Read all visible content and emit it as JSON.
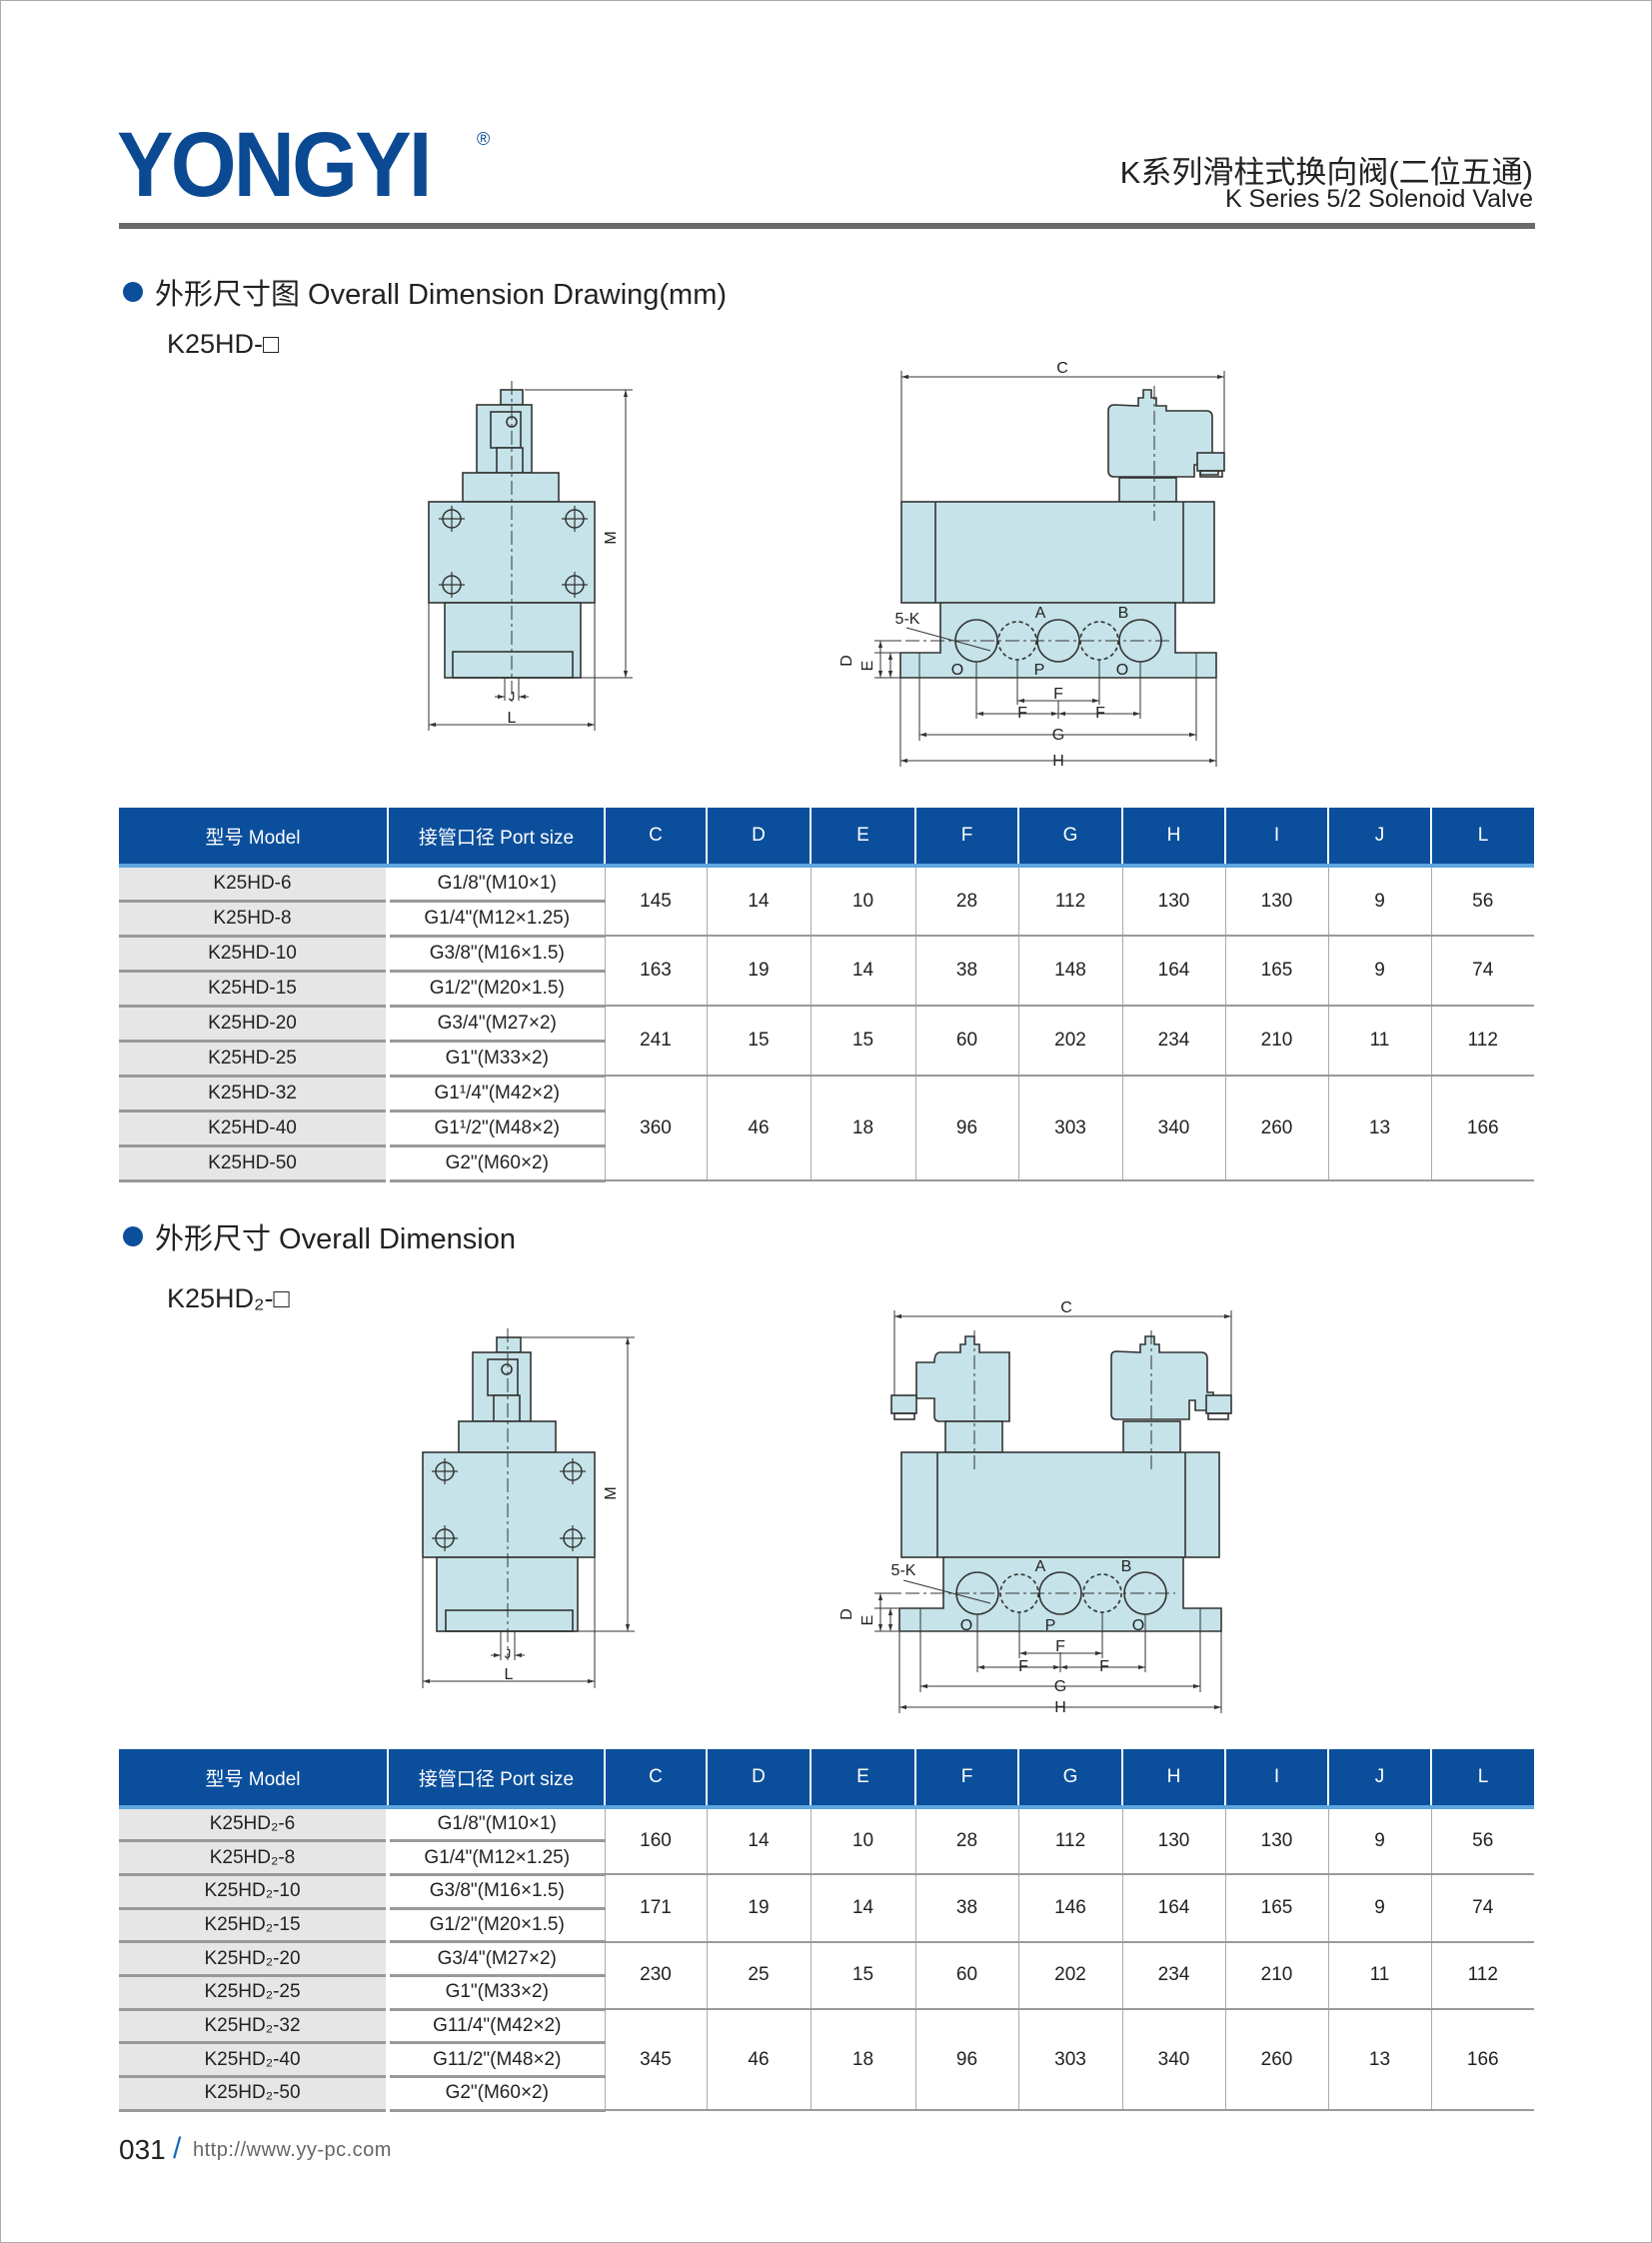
{
  "header": {
    "logo": "YONGYI",
    "registered_mark": "®",
    "title_cn": "K系列滑柱式换向阀(二位五通)",
    "title_en": "K Series 5/2 Solenoid Valve"
  },
  "section1": {
    "heading": "外形尺寸图 Overall Dimension Drawing(mm)",
    "model": "K25HD-□"
  },
  "section2": {
    "heading": "外形尺寸 Overall Dimension",
    "model": "K25HD₂-□"
  },
  "drawing_labels": {
    "C": "C",
    "D": "D",
    "E": "E",
    "F": "F",
    "G": "G",
    "H": "H",
    "M": "M",
    "L": "L",
    "J": "J",
    "K": "5-K",
    "A": "A",
    "B": "B",
    "O": "O",
    "P": "P"
  },
  "colors": {
    "accent": "#0b4f9c",
    "drawing_fill": "#c5e3e8"
  },
  "tables": [
    {
      "headers": [
        "型号 Model",
        "接管口径 Port size",
        "C",
        "D",
        "E",
        "F",
        "G",
        "H",
        "I",
        "J",
        "L"
      ],
      "groups": [
        {
          "rows": [
            {
              "model": "K25HD-6",
              "port": "G1/8\"(M10×1)"
            },
            {
              "model": "K25HD-8",
              "port": "G1/4\"(M12×1.25)"
            }
          ],
          "values": [
            "145",
            "14",
            "10",
            "28",
            "112",
            "130",
            "130",
            "9",
            "56"
          ]
        },
        {
          "rows": [
            {
              "model": "K25HD-10",
              "port": "G3/8\"(M16×1.5)"
            },
            {
              "model": "K25HD-15",
              "port": "G1/2\"(M20×1.5)"
            }
          ],
          "values": [
            "163",
            "19",
            "14",
            "38",
            "148",
            "164",
            "165",
            "9",
            "74"
          ]
        },
        {
          "rows": [
            {
              "model": "K25HD-20",
              "port": "G3/4\"(M27×2)"
            },
            {
              "model": "K25HD-25",
              "port": "G1\"(M33×2)"
            }
          ],
          "values": [
            "241",
            "15",
            "15",
            "60",
            "202",
            "234",
            "210",
            "11",
            "112"
          ]
        },
        {
          "rows": [
            {
              "model": "K25HD-32",
              "port": "G1¹/4\"(M42×2)"
            },
            {
              "model": "K25HD-40",
              "port": "G1¹/2\"(M48×2)"
            },
            {
              "model": "K25HD-50",
              "port": "G2\"(M60×2)"
            }
          ],
          "values": [
            "360",
            "46",
            "18",
            "96",
            "303",
            "340",
            "260",
            "13",
            "166"
          ]
        }
      ]
    },
    {
      "headers": [
        "型号 Model",
        "接管口径 Port size",
        "C",
        "D",
        "E",
        "F",
        "G",
        "H",
        "I",
        "J",
        "L"
      ],
      "groups": [
        {
          "rows": [
            {
              "model": "K25HD₂-6",
              "port": "G1/8\"(M10×1)"
            },
            {
              "model": "K25HD₂-8",
              "port": "G1/4\"(M12×1.25)"
            }
          ],
          "values": [
            "160",
            "14",
            "10",
            "28",
            "112",
            "130",
            "130",
            "9",
            "56"
          ]
        },
        {
          "rows": [
            {
              "model": "K25HD₂-10",
              "port": "G3/8\"(M16×1.5)"
            },
            {
              "model": "K25HD₂-15",
              "port": "G1/2\"(M20×1.5)"
            }
          ],
          "values": [
            "171",
            "19",
            "14",
            "38",
            "146",
            "164",
            "165",
            "9",
            "74"
          ]
        },
        {
          "rows": [
            {
              "model": "K25HD₂-20",
              "port": "G3/4\"(M27×2)"
            },
            {
              "model": "K25HD₂-25",
              "port": "G1\"(M33×2)"
            }
          ],
          "values": [
            "230",
            "25",
            "15",
            "60",
            "202",
            "234",
            "210",
            "11",
            "112"
          ]
        },
        {
          "rows": [
            {
              "model": "K25HD₂-32",
              "port": "G11/4\"(M42×2)"
            },
            {
              "model": "K25HD₂-40",
              "port": "G11/2\"(M48×2)"
            },
            {
              "model": "K25HD₂-50",
              "port": "G2\"(M60×2)"
            }
          ],
          "values": [
            "345",
            "46",
            "18",
            "96",
            "303",
            "340",
            "260",
            "13",
            "166"
          ]
        }
      ]
    }
  ],
  "footer": {
    "page_number": "031",
    "slash": "/",
    "url": "http://www.yy-pc.com"
  }
}
